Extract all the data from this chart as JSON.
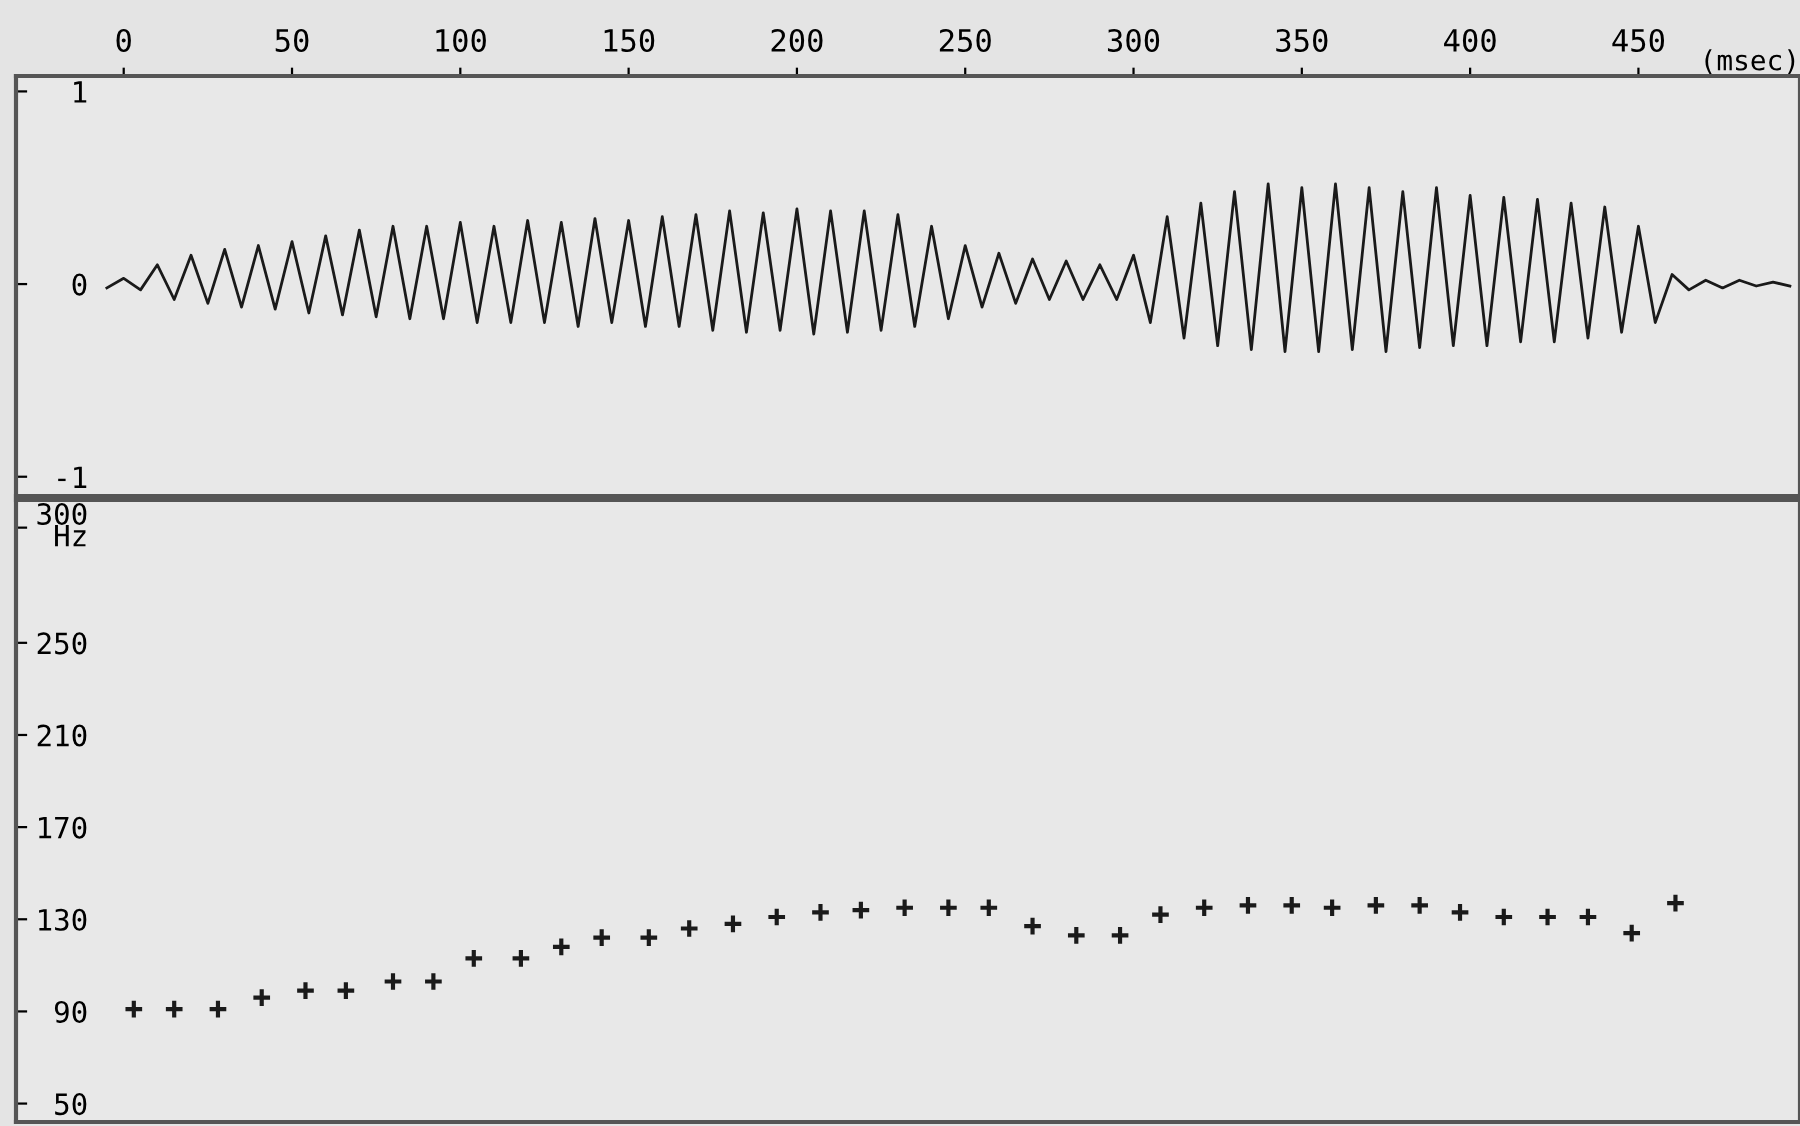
{
  "chart_data": [
    {
      "type": "line",
      "xlabel": "(msec)",
      "xlim": [
        -32,
        498
      ],
      "xticks": [
        0,
        50,
        100,
        150,
        200,
        250,
        300,
        350,
        400,
        450
      ],
      "ylim": [
        -1.1,
        1.08
      ],
      "yticks": [
        -1,
        0,
        1
      ],
      "grid": false,
      "legend": false,
      "marker": "none",
      "line_style": "solid",
      "x": [
        -5,
        0,
        5,
        10,
        15,
        20,
        25,
        30,
        35,
        40,
        45,
        50,
        55,
        60,
        65,
        70,
        75,
        80,
        85,
        90,
        95,
        100,
        105,
        110,
        115,
        120,
        125,
        130,
        135,
        140,
        145,
        150,
        155,
        160,
        165,
        170,
        175,
        180,
        185,
        190,
        195,
        200,
        205,
        210,
        215,
        220,
        225,
        230,
        235,
        240,
        245,
        250,
        255,
        260,
        265,
        270,
        275,
        280,
        285,
        290,
        295,
        300,
        305,
        310,
        315,
        320,
        325,
        330,
        335,
        340,
        345,
        350,
        355,
        360,
        365,
        370,
        375,
        380,
        385,
        390,
        395,
        400,
        405,
        410,
        415,
        420,
        425,
        430,
        435,
        440,
        445,
        450,
        455,
        460,
        465,
        470,
        475,
        480,
        485,
        490,
        495
      ],
      "series": [
        {
          "color": "#1a1a1a",
          "values": [
            -0.02,
            0.03,
            -0.03,
            0.1,
            -0.08,
            0.15,
            -0.1,
            0.18,
            -0.12,
            0.2,
            -0.13,
            0.22,
            -0.15,
            0.25,
            -0.16,
            0.28,
            -0.17,
            0.3,
            -0.18,
            0.3,
            -0.18,
            0.32,
            -0.2,
            0.3,
            -0.2,
            0.33,
            -0.2,
            0.32,
            -0.22,
            0.34,
            -0.2,
            0.33,
            -0.22,
            0.35,
            -0.22,
            0.36,
            -0.24,
            0.38,
            -0.25,
            0.37,
            -0.24,
            0.39,
            -0.26,
            0.38,
            -0.25,
            0.38,
            -0.24,
            0.36,
            -0.22,
            0.3,
            -0.18,
            0.2,
            -0.12,
            0.16,
            -0.1,
            0.13,
            -0.08,
            0.12,
            -0.08,
            0.1,
            -0.08,
            0.15,
            -0.2,
            0.35,
            -0.28,
            0.42,
            -0.32,
            0.48,
            -0.34,
            0.52,
            -0.35,
            0.5,
            -0.35,
            0.52,
            -0.34,
            0.5,
            -0.35,
            0.48,
            -0.33,
            0.5,
            -0.32,
            0.46,
            -0.32,
            0.45,
            -0.3,
            0.44,
            -0.3,
            0.42,
            -0.28,
            0.4,
            -0.25,
            0.3,
            -0.2,
            0.05,
            -0.03,
            0.02,
            -0.02,
            0.02,
            -0.01,
            0.01,
            -0.01
          ]
        }
      ]
    },
    {
      "type": "scatter",
      "xlim": [
        -32,
        498
      ],
      "ylim": [
        42,
        312
      ],
      "yticks": [
        {
          "value": 300,
          "label": "300\nHz"
        },
        250,
        210,
        170,
        130,
        90,
        50
      ],
      "tick_labels": "y",
      "grid": false,
      "legend": false,
      "marker": "cross",
      "x": [
        3,
        15,
        28,
        41,
        54,
        66,
        80,
        92,
        104,
        118,
        130,
        142,
        156,
        168,
        181,
        194,
        207,
        219,
        232,
        245,
        257,
        270,
        283,
        296,
        308,
        321,
        334,
        347,
        359,
        372,
        385,
        397,
        410,
        423,
        435,
        448,
        461
      ],
      "series": [
        {
          "color": "#1a1a1a",
          "values": [
            91,
            91,
            91,
            96,
            99,
            99,
            103,
            103,
            113,
            113,
            118,
            122,
            122,
            126,
            128,
            131,
            133,
            134,
            135,
            135,
            135,
            127,
            123,
            123,
            132,
            135,
            136,
            136,
            135,
            136,
            136,
            133,
            131,
            131,
            131,
            124,
            137
          ]
        }
      ]
    }
  ]
}
